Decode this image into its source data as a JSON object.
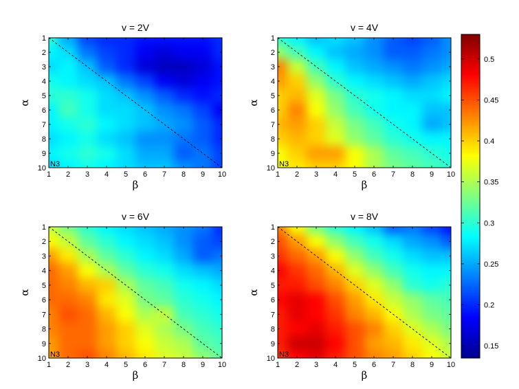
{
  "chart_data": [
    {
      "type": "heatmap",
      "title": "v = 2V",
      "xlabel": "β",
      "ylabel": "α",
      "x": [
        1,
        2,
        3,
        4,
        5,
        6,
        7,
        8,
        9,
        10
      ],
      "y": [
        1,
        2,
        3,
        4,
        5,
        6,
        7,
        8,
        9,
        10
      ],
      "annotation": "N3",
      "diagonal": "dashed line from (1,1) to (10,10)",
      "values": [
        [
          0.3,
          0.25,
          0.21,
          0.2,
          0.2,
          0.19,
          0.19,
          0.19,
          0.19,
          0.2
        ],
        [
          0.28,
          0.27,
          0.23,
          0.21,
          0.2,
          0.18,
          0.17,
          0.18,
          0.18,
          0.2
        ],
        [
          0.27,
          0.28,
          0.26,
          0.22,
          0.2,
          0.17,
          0.16,
          0.16,
          0.17,
          0.19
        ],
        [
          0.29,
          0.28,
          0.27,
          0.26,
          0.23,
          0.21,
          0.18,
          0.17,
          0.18,
          0.19
        ],
        [
          0.3,
          0.3,
          0.29,
          0.27,
          0.26,
          0.24,
          0.22,
          0.2,
          0.19,
          0.2
        ],
        [
          0.28,
          0.31,
          0.29,
          0.27,
          0.27,
          0.26,
          0.24,
          0.23,
          0.21,
          0.18
        ],
        [
          0.28,
          0.29,
          0.3,
          0.28,
          0.27,
          0.26,
          0.25,
          0.24,
          0.22,
          0.2
        ],
        [
          0.27,
          0.28,
          0.29,
          0.27,
          0.26,
          0.24,
          0.24,
          0.23,
          0.22,
          0.2
        ],
        [
          0.28,
          0.29,
          0.3,
          0.29,
          0.27,
          0.25,
          0.25,
          0.22,
          0.23,
          0.21
        ],
        [
          0.27,
          0.28,
          0.29,
          0.28,
          0.27,
          0.26,
          0.26,
          0.24,
          0.23,
          0.21
        ]
      ]
    },
    {
      "type": "heatmap",
      "title": "v = 4V",
      "xlabel": "β",
      "ylabel": "α",
      "x": [
        1,
        2,
        3,
        4,
        5,
        6,
        7,
        8,
        9,
        10
      ],
      "y": [
        1,
        2,
        3,
        4,
        5,
        6,
        7,
        8,
        9,
        10
      ],
      "annotation": "N3",
      "diagonal": "dashed line from (1,1) to (10,10)",
      "values": [
        [
          0.3,
          0.28,
          0.26,
          0.27,
          0.26,
          0.24,
          0.22,
          0.21,
          0.22,
          0.24
        ],
        [
          0.34,
          0.31,
          0.28,
          0.26,
          0.25,
          0.24,
          0.22,
          0.22,
          0.23,
          0.24
        ],
        [
          0.43,
          0.36,
          0.31,
          0.28,
          0.26,
          0.25,
          0.24,
          0.23,
          0.24,
          0.25
        ],
        [
          0.42,
          0.4,
          0.34,
          0.3,
          0.28,
          0.27,
          0.26,
          0.25,
          0.26,
          0.27
        ],
        [
          0.4,
          0.41,
          0.37,
          0.33,
          0.3,
          0.29,
          0.28,
          0.27,
          0.27,
          0.28
        ],
        [
          0.4,
          0.43,
          0.38,
          0.34,
          0.31,
          0.29,
          0.28,
          0.28,
          0.26,
          0.26
        ],
        [
          0.41,
          0.42,
          0.4,
          0.36,
          0.33,
          0.31,
          0.29,
          0.28,
          0.25,
          0.26
        ],
        [
          0.4,
          0.41,
          0.4,
          0.37,
          0.34,
          0.32,
          0.3,
          0.29,
          0.28,
          0.28
        ],
        [
          0.38,
          0.4,
          0.42,
          0.42,
          0.38,
          0.35,
          0.32,
          0.31,
          0.3,
          0.29
        ],
        [
          0.38,
          0.39,
          0.4,
          0.4,
          0.38,
          0.35,
          0.33,
          0.32,
          0.31,
          0.3
        ]
      ]
    },
    {
      "type": "heatmap",
      "title": "v = 6V",
      "xlabel": "β",
      "ylabel": "α",
      "x": [
        1,
        2,
        3,
        4,
        5,
        6,
        7,
        8,
        9,
        10
      ],
      "y": [
        1,
        2,
        3,
        4,
        5,
        6,
        7,
        8,
        9,
        10
      ],
      "annotation": "N3",
      "diagonal": "dashed line from (1,1) to (10,10)",
      "values": [
        [
          0.36,
          0.33,
          0.3,
          0.28,
          0.27,
          0.26,
          0.25,
          0.24,
          0.23,
          0.2
        ],
        [
          0.38,
          0.36,
          0.32,
          0.3,
          0.28,
          0.27,
          0.26,
          0.24,
          0.22,
          0.21
        ],
        [
          0.42,
          0.39,
          0.35,
          0.32,
          0.3,
          0.28,
          0.27,
          0.25,
          0.22,
          0.23
        ],
        [
          0.44,
          0.42,
          0.38,
          0.35,
          0.32,
          0.3,
          0.29,
          0.27,
          0.26,
          0.25
        ],
        [
          0.44,
          0.43,
          0.41,
          0.4,
          0.35,
          0.32,
          0.31,
          0.29,
          0.28,
          0.27
        ],
        [
          0.44,
          0.44,
          0.43,
          0.39,
          0.37,
          0.33,
          0.32,
          0.3,
          0.29,
          0.28
        ],
        [
          0.43,
          0.45,
          0.44,
          0.41,
          0.38,
          0.35,
          0.36,
          0.31,
          0.3,
          0.29
        ],
        [
          0.43,
          0.44,
          0.44,
          0.42,
          0.4,
          0.37,
          0.35,
          0.33,
          0.31,
          0.3
        ],
        [
          0.42,
          0.44,
          0.44,
          0.42,
          0.4,
          0.38,
          0.36,
          0.35,
          0.32,
          0.31
        ],
        [
          0.42,
          0.44,
          0.45,
          0.43,
          0.41,
          0.39,
          0.37,
          0.36,
          0.34,
          0.32
        ]
      ]
    },
    {
      "type": "heatmap",
      "title": "v = 8V",
      "xlabel": "β",
      "ylabel": "α",
      "x": [
        1,
        2,
        3,
        4,
        5,
        6,
        7,
        8,
        9,
        10
      ],
      "y": [
        1,
        2,
        3,
        4,
        5,
        6,
        7,
        8,
        9,
        10
      ],
      "annotation": "N3",
      "diagonal": "dashed line from (1,1) to (10,10)",
      "values": [
        [
          0.43,
          0.38,
          0.33,
          0.3,
          0.28,
          0.26,
          0.22,
          0.23,
          0.21,
          0.19
        ],
        [
          0.45,
          0.42,
          0.38,
          0.34,
          0.31,
          0.29,
          0.27,
          0.25,
          0.24,
          0.22
        ],
        [
          0.46,
          0.44,
          0.42,
          0.38,
          0.34,
          0.31,
          0.29,
          0.27,
          0.26,
          0.26
        ],
        [
          0.48,
          0.46,
          0.44,
          0.41,
          0.37,
          0.34,
          0.31,
          0.29,
          0.28,
          0.28
        ],
        [
          0.47,
          0.47,
          0.45,
          0.43,
          0.4,
          0.37,
          0.34,
          0.3,
          0.29,
          0.3
        ],
        [
          0.48,
          0.49,
          0.48,
          0.45,
          0.42,
          0.39,
          0.36,
          0.34,
          0.32,
          0.31
        ],
        [
          0.47,
          0.49,
          0.48,
          0.46,
          0.43,
          0.41,
          0.38,
          0.35,
          0.33,
          0.32
        ],
        [
          0.47,
          0.48,
          0.49,
          0.47,
          0.45,
          0.43,
          0.4,
          0.37,
          0.35,
          0.33
        ],
        [
          0.47,
          0.5,
          0.5,
          0.48,
          0.45,
          0.42,
          0.41,
          0.39,
          0.37,
          0.35
        ],
        [
          0.46,
          0.48,
          0.49,
          0.47,
          0.45,
          0.43,
          0.42,
          0.4,
          0.38,
          0.36
        ]
      ]
    }
  ],
  "colorbar": {
    "colormap": "jet",
    "range": [
      0.135,
      0.53
    ],
    "ticks": [
      "0.15",
      "0.2",
      "0.25",
      "0.3",
      "0.35",
      "0.4",
      "0.45",
      "0.5"
    ]
  }
}
